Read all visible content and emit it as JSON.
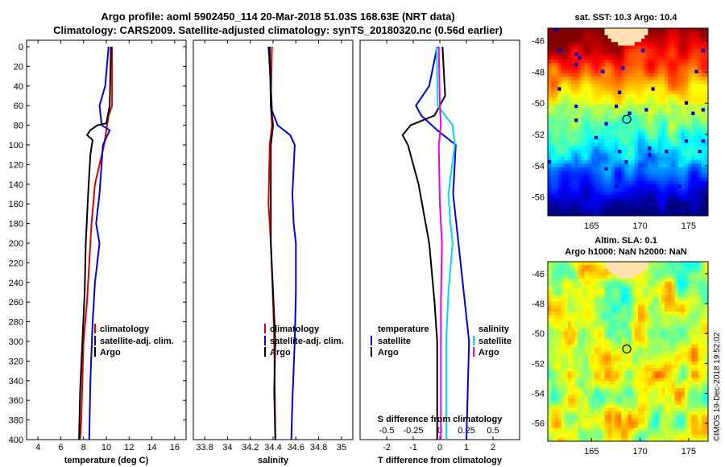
{
  "title_line1": "Argo profile: aoml 5902450_114 20-Mar-2018 51.03S 168.63E (NRT data)",
  "title_line2": "Climatology: CARS2009. Satellite-adjusted climatology: synTS_20180320.nc (0.56d earlier)",
  "colors": {
    "climatology": "#dd0000",
    "satellite": "#0000dd",
    "argo": "#000000",
    "sat_sal_diff": "#00dddd",
    "argo_sal_diff": "#ee00ee"
  },
  "depth_ticks": [
    "0",
    "20",
    "40",
    "60",
    "80",
    "100",
    "120",
    "140",
    "160",
    "180",
    "200",
    "220",
    "240",
    "260",
    "280",
    "300",
    "320",
    "340",
    "360",
    "380",
    "400"
  ],
  "chart_data": [
    {
      "type": "line",
      "name": "temperature",
      "xlabel": "temperature (deg C)",
      "ylabel": "",
      "xlim": [
        3,
        17
      ],
      "ylim": [
        400,
        0
      ],
      "xticks": [
        "4",
        "6",
        "8",
        "10",
        "12",
        "14",
        "16"
      ],
      "xtick_values": [
        4,
        6,
        8,
        10,
        12,
        14,
        16
      ],
      "legend": [
        "climatology",
        "satellite-adj. clim.",
        "Argo"
      ],
      "series": [
        {
          "name": "climatology",
          "color": "#dd0000",
          "points": [
            [
              10.5,
              0
            ],
            [
              10.5,
              60
            ],
            [
              10.2,
              70
            ],
            [
              9.8,
              100
            ],
            [
              9.0,
              140
            ],
            [
              8.7,
              180
            ],
            [
              8.5,
              220
            ],
            [
              8.3,
              260
            ],
            [
              8.0,
              300
            ],
            [
              7.9,
              340
            ],
            [
              7.8,
              380
            ],
            [
              7.7,
              400
            ]
          ]
        },
        {
          "name": "satellite-adj. clim.",
          "color": "#0000dd",
          "points": [
            [
              10.2,
              0
            ],
            [
              9.9,
              40
            ],
            [
              9.4,
              60
            ],
            [
              9.6,
              80
            ],
            [
              10.3,
              85
            ],
            [
              9.7,
              100
            ],
            [
              9.4,
              150
            ],
            [
              9.1,
              180
            ],
            [
              9.4,
              200
            ],
            [
              9.0,
              240
            ],
            [
              8.8,
              280
            ],
            [
              8.6,
              340
            ],
            [
              8.5,
              400
            ]
          ]
        },
        {
          "name": "Argo",
          "color": "#000000",
          "points": [
            [
              10.4,
              0
            ],
            [
              10.3,
              60
            ],
            [
              10.0,
              78
            ],
            [
              9.2,
              80
            ],
            [
              8.6,
              85
            ],
            [
              8.3,
              90
            ],
            [
              8.8,
              95
            ],
            [
              8.6,
              110
            ],
            [
              8.4,
              150
            ],
            [
              8.2,
              200
            ],
            [
              8.1,
              250
            ],
            [
              7.9,
              300
            ],
            [
              7.7,
              350
            ],
            [
              7.6,
              400
            ]
          ]
        }
      ]
    },
    {
      "type": "line",
      "name": "salinity",
      "xlabel": "salinity",
      "ylabel": "",
      "xlim": [
        33.7,
        35.1
      ],
      "ylim": [
        400,
        0
      ],
      "xticks": [
        "33.8",
        "34",
        "34.2",
        "34.4",
        "34.6",
        "34.8",
        "35"
      ],
      "xtick_values": [
        33.8,
        34.0,
        34.2,
        34.4,
        34.6,
        34.8,
        35.0
      ],
      "legend": [
        "climatology",
        "satellite-adj. clim.",
        "Argo"
      ],
      "series": [
        {
          "name": "climatology",
          "color": "#dd0000",
          "points": [
            [
              34.39,
              0
            ],
            [
              34.38,
              60
            ],
            [
              34.39,
              80
            ],
            [
              34.37,
              100
            ],
            [
              34.36,
              160
            ],
            [
              34.38,
              200
            ],
            [
              34.4,
              260
            ],
            [
              34.41,
              300
            ],
            [
              34.42,
              400
            ]
          ]
        },
        {
          "name": "satellite-adj. clim.",
          "color": "#0000dd",
          "points": [
            [
              34.36,
              0
            ],
            [
              34.38,
              40
            ],
            [
              34.39,
              65
            ],
            [
              34.44,
              80
            ],
            [
              34.55,
              90
            ],
            [
              34.59,
              100
            ],
            [
              34.57,
              150
            ],
            [
              34.58,
              180
            ],
            [
              34.6,
              200
            ],
            [
              34.6,
              250
            ],
            [
              34.59,
              300
            ],
            [
              34.57,
              360
            ],
            [
              34.56,
              400
            ]
          ]
        },
        {
          "name": "Argo",
          "color": "#000000",
          "points": [
            [
              34.37,
              0
            ],
            [
              34.38,
              60
            ],
            [
              34.4,
              80
            ],
            [
              34.38,
              100
            ],
            [
              34.38,
              200
            ],
            [
              34.4,
              250
            ],
            [
              34.42,
              300
            ],
            [
              34.41,
              350
            ],
            [
              34.42,
              400
            ]
          ]
        }
      ]
    },
    {
      "type": "line",
      "name": "differences",
      "xlabel": "T difference from climatology",
      "top_axis_label": "S difference from climatology",
      "ylabel": "",
      "xlim": [
        -3,
        3
      ],
      "ylim": [
        400,
        0
      ],
      "xticks": [
        "-2",
        "-1",
        "0",
        "1",
        "2"
      ],
      "xtick_values": [
        -2,
        -1,
        0,
        1,
        2
      ],
      "s_xlim": [
        -0.75,
        0.75
      ],
      "s_xticks": [
        "-0.5",
        "-0.25",
        "0",
        "0.25",
        "0.5"
      ],
      "s_xtick_values": [
        -0.5,
        -0.25,
        0,
        0.25,
        0.5
      ],
      "legend_temperature_title": "temperature",
      "legend_salinity_title": "salinity",
      "legend_temperature": [
        "satellite",
        "Argo"
      ],
      "legend_salinity": [
        "satellite",
        "Argo"
      ],
      "series": [
        {
          "name": "T satellite",
          "color": "#0000dd",
          "axis": "T",
          "points": [
            [
              -0.1,
              0
            ],
            [
              -0.4,
              40
            ],
            [
              -0.9,
              60
            ],
            [
              -0.7,
              70
            ],
            [
              -0.1,
              85
            ],
            [
              0.6,
              100
            ],
            [
              0.5,
              150
            ],
            [
              0.9,
              250
            ],
            [
              1.1,
              300
            ],
            [
              1.0,
              400
            ]
          ]
        },
        {
          "name": "T Argo",
          "color": "#000000",
          "axis": "T",
          "points": [
            [
              0.1,
              0
            ],
            [
              0.2,
              50
            ],
            [
              -0.2,
              70
            ],
            [
              -1.1,
              80
            ],
            [
              -1.4,
              90
            ],
            [
              -1.2,
              100
            ],
            [
              -0.8,
              140
            ],
            [
              -0.4,
              200
            ],
            [
              -0.2,
              260
            ],
            [
              -0.1,
              300
            ],
            [
              -0.1,
              400
            ]
          ]
        },
        {
          "name": "S satellite",
          "color": "#00dddd",
          "axis": "S",
          "points": [
            [
              -0.03,
              0
            ],
            [
              -0.02,
              60
            ],
            [
              0.05,
              70
            ],
            [
              0.12,
              80
            ],
            [
              0.14,
              100
            ],
            [
              0.08,
              150
            ],
            [
              0.1,
              180
            ],
            [
              0.12,
              200
            ],
            [
              0.08,
              250
            ],
            [
              0.06,
              300
            ],
            [
              0.06,
              400
            ]
          ]
        },
        {
          "name": "S Argo",
          "color": "#ee00ee",
          "axis": "S",
          "points": [
            [
              -0.01,
              0
            ],
            [
              0.0,
              60
            ],
            [
              0.01,
              80
            ],
            [
              -0.01,
              100
            ],
            [
              0.0,
              160
            ],
            [
              0.02,
              200
            ],
            [
              0.01,
              260
            ],
            [
              0.01,
              300
            ],
            [
              0.01,
              400
            ]
          ]
        }
      ]
    },
    {
      "type": "heatmap",
      "name": "sst-map",
      "title": "sat. SST: 10.3 Argo: 10.4",
      "xticks": [
        "165",
        "170",
        "175"
      ],
      "xtick_values": [
        165,
        170,
        175
      ],
      "yticks": [
        "-46",
        "-48",
        "-50",
        "-52",
        "-54",
        "-56"
      ],
      "ytick_values": [
        -46,
        -48,
        -50,
        -52,
        -54,
        -56
      ],
      "xlim": [
        160.5,
        177
      ],
      "ylim": [
        -57.2,
        -45.2
      ],
      "argo_position": [
        168.63,
        -51.03
      ]
    },
    {
      "type": "heatmap",
      "name": "sla-map",
      "title_line1": "Altim. SLA: 0.1",
      "title_line2": "Argo h1000: NaN h2000: NaN",
      "xticks": [
        "165",
        "170",
        "175"
      ],
      "xtick_values": [
        165,
        170,
        175
      ],
      "yticks": [
        "-46",
        "-48",
        "-50",
        "-52",
        "-54",
        "-56"
      ],
      "ytick_values": [
        -46,
        -48,
        -50,
        -52,
        -54,
        -56
      ],
      "xlim": [
        160.5,
        177
      ],
      "ylim": [
        -57.2,
        -45.2
      ],
      "argo_position": [
        168.63,
        -51.03
      ]
    }
  ],
  "stamp": "©IMOS 19-Dec-2018 19:52:02"
}
